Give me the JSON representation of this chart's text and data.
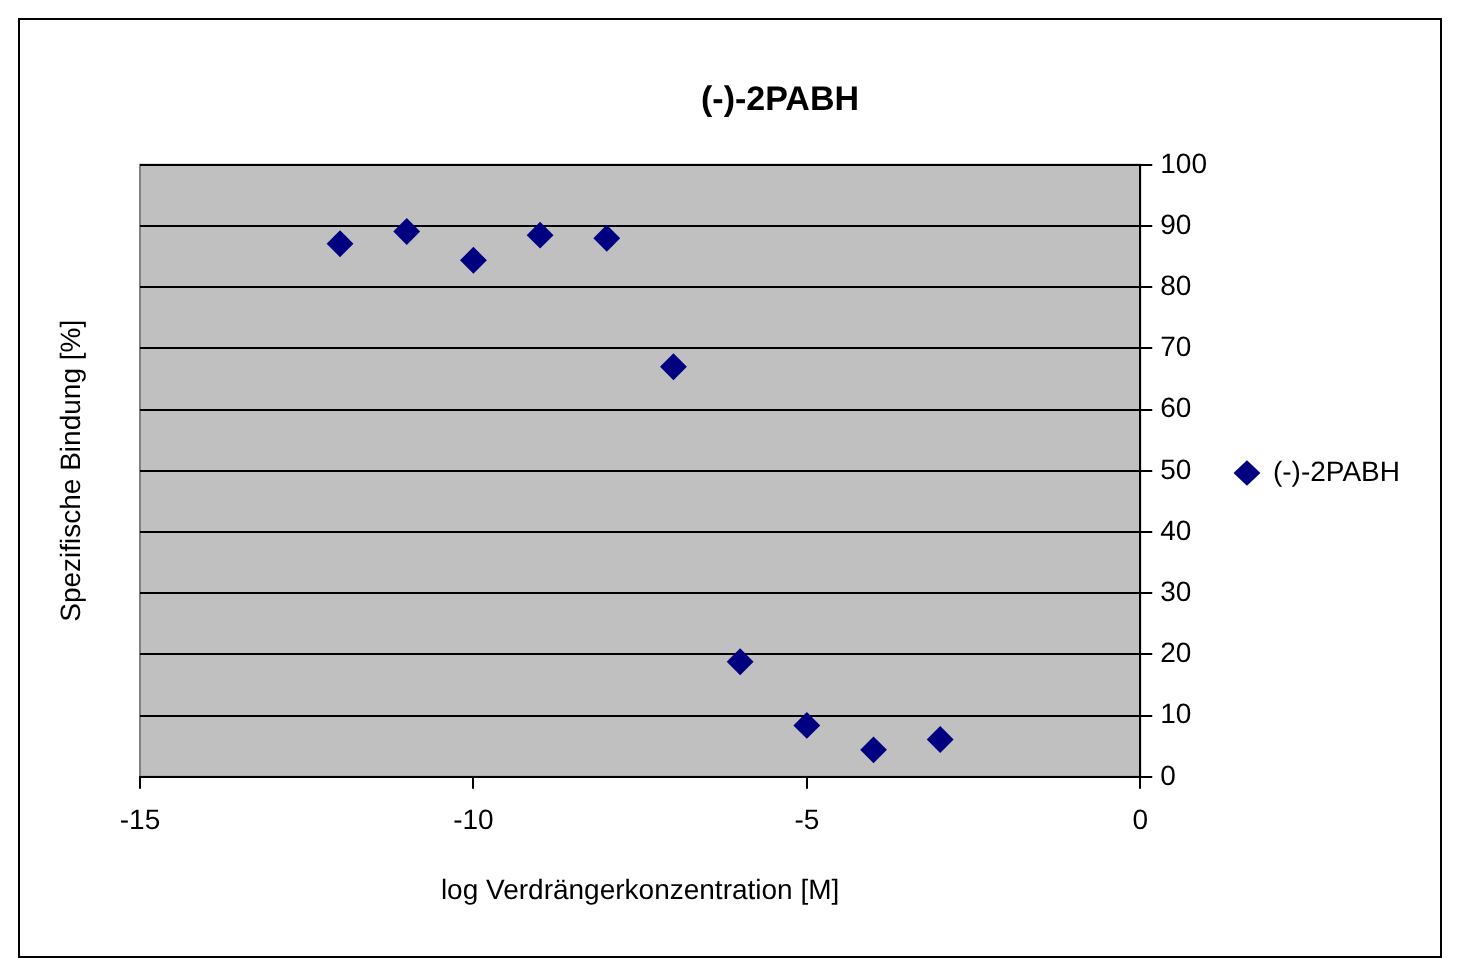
{
  "chart_data": {
    "type": "scatter",
    "title": "(-)-2PABH",
    "xlabel": "log Verdrängerkonzentration [M]",
    "ylabel": "Spezifische Bindung [%]",
    "series": [
      {
        "name": "(-)-2PABH",
        "color": "#000080",
        "x": [
          -12,
          -11,
          -10,
          -9,
          -8,
          -7,
          -6,
          -5,
          -4,
          -3
        ],
        "values": [
          87.1,
          89.1,
          84.4,
          88.5,
          88.0,
          67.0,
          18.8,
          8.4,
          4.4,
          6.1
        ]
      }
    ],
    "xlim": [
      -15,
      0
    ],
    "xticks": [
      -15,
      -10,
      -5,
      0
    ],
    "ylim": [
      0,
      100
    ],
    "yticks": [
      0,
      10,
      20,
      30,
      40,
      50,
      60,
      70,
      80,
      90,
      100
    ],
    "grid": "y",
    "legend": "right",
    "marker": "diamond"
  }
}
